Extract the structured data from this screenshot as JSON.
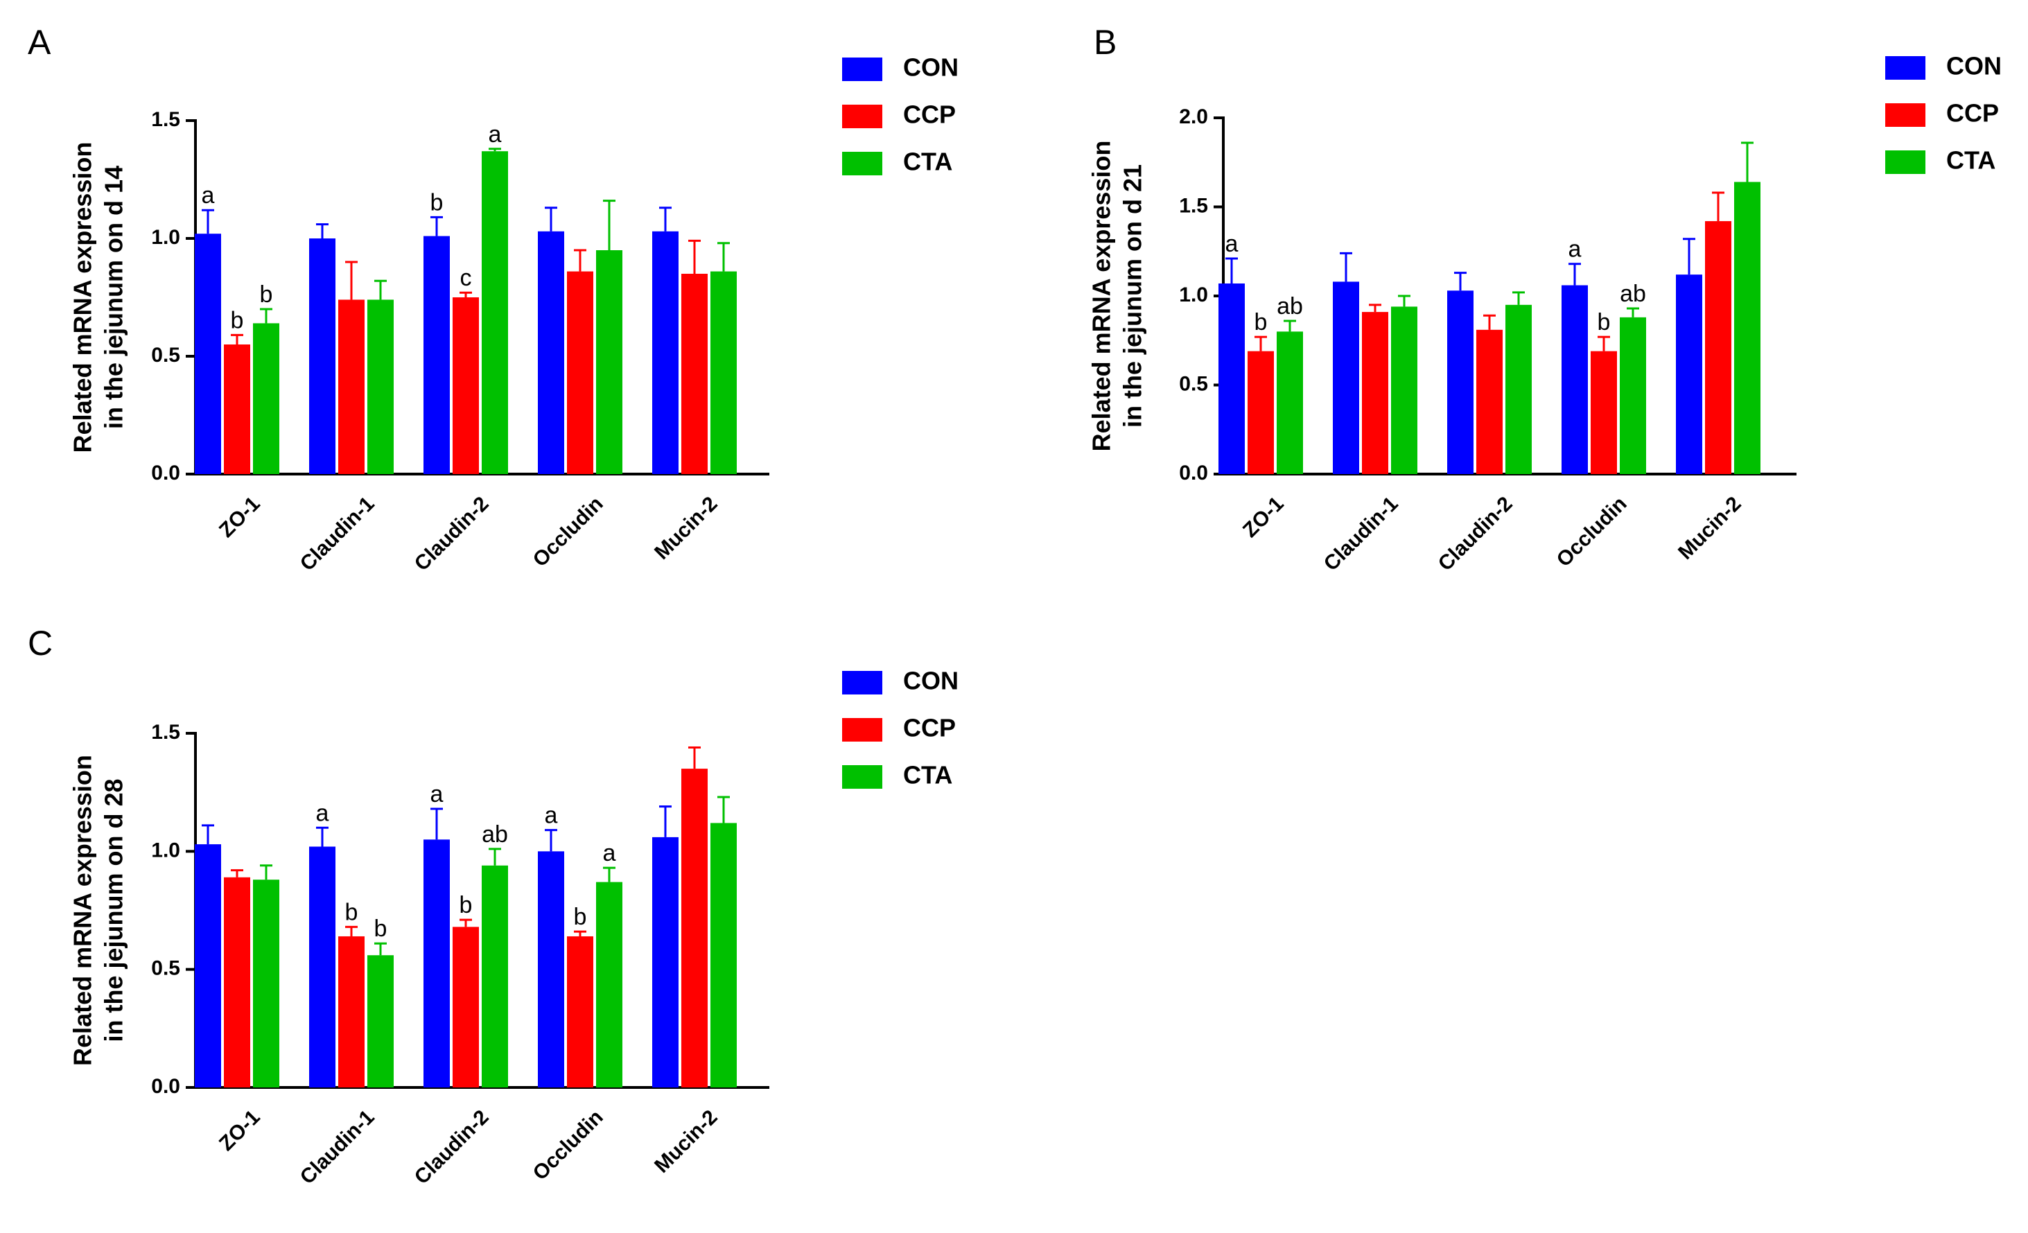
{
  "legend": [
    {
      "name": "CON",
      "color": "#0000FF"
    },
    {
      "name": "CCP",
      "color": "#FF0000"
    },
    {
      "name": "CTA",
      "color": "#00C000"
    }
  ],
  "chart_data": [
    {
      "panel": "A",
      "type": "bar",
      "ylabel_line1": "Related mRNA expression",
      "ylabel_line2": "in the jejunum on d 14",
      "ylim": [
        0,
        1.5
      ],
      "yticks": [
        "0.0",
        "0.5",
        "1.0",
        "1.5"
      ],
      "categories": [
        "ZO-1",
        "Claudin-1",
        "Claudin-2",
        "Occludin",
        "Mucin-2"
      ],
      "series": [
        {
          "name": "CON",
          "values": [
            1.02,
            1.0,
            1.01,
            1.03,
            1.03
          ],
          "errors": [
            0.1,
            0.06,
            0.08,
            0.1,
            0.1
          ],
          "labels": [
            "a",
            "",
            "b",
            "",
            ""
          ]
        },
        {
          "name": "CCP",
          "values": [
            0.55,
            0.74,
            0.75,
            0.86,
            0.85
          ],
          "errors": [
            0.04,
            0.16,
            0.02,
            0.09,
            0.14
          ],
          "labels": [
            "b",
            "",
            "c",
            "",
            ""
          ]
        },
        {
          "name": "CTA",
          "values": [
            0.64,
            0.74,
            1.37,
            0.95,
            0.86
          ],
          "errors": [
            0.06,
            0.08,
            0.01,
            0.21,
            0.12
          ],
          "labels": [
            "b",
            "",
            "a",
            "",
            ""
          ]
        }
      ]
    },
    {
      "panel": "B",
      "type": "bar",
      "ylabel_line1": "Related mRNA expression",
      "ylabel_line2": "in the jejunum on d 21",
      "ylim": [
        0,
        2.0
      ],
      "yticks": [
        "0.0",
        "0.5",
        "1.0",
        "1.5",
        "2.0"
      ],
      "categories": [
        "ZO-1",
        "Claudin-1",
        "Claudin-2",
        "Occludin",
        "Mucin-2"
      ],
      "series": [
        {
          "name": "CON",
          "values": [
            1.07,
            1.08,
            1.03,
            1.06,
            1.12
          ],
          "errors": [
            0.14,
            0.16,
            0.1,
            0.12,
            0.2
          ],
          "labels": [
            "a",
            "",
            "",
            "a",
            ""
          ]
        },
        {
          "name": "CCP",
          "values": [
            0.69,
            0.91,
            0.81,
            0.69,
            1.42
          ],
          "errors": [
            0.08,
            0.04,
            0.08,
            0.08,
            0.16
          ],
          "labels": [
            "b",
            "",
            "",
            "b",
            ""
          ]
        },
        {
          "name": "CTA",
          "values": [
            0.8,
            0.94,
            0.95,
            0.88,
            1.64
          ],
          "errors": [
            0.06,
            0.06,
            0.07,
            0.05,
            0.22
          ],
          "labels": [
            "ab",
            "",
            "",
            "ab",
            ""
          ]
        }
      ]
    },
    {
      "panel": "C",
      "type": "bar",
      "ylabel_line1": "Related mRNA expression",
      "ylabel_line2": "in the jejunum on d 28",
      "ylim": [
        0,
        1.5
      ],
      "yticks": [
        "0.0",
        "0.5",
        "1.0",
        "1.5"
      ],
      "categories": [
        "ZO-1",
        "Claudin-1",
        "Claudin-2",
        "Occludin",
        "Mucin-2"
      ],
      "series": [
        {
          "name": "CON",
          "values": [
            1.03,
            1.02,
            1.05,
            1.0,
            1.06
          ],
          "errors": [
            0.08,
            0.08,
            0.13,
            0.09,
            0.13
          ],
          "labels": [
            "",
            "a",
            "a",
            "a",
            ""
          ]
        },
        {
          "name": "CCP",
          "values": [
            0.89,
            0.64,
            0.68,
            0.64,
            1.35
          ],
          "errors": [
            0.03,
            0.04,
            0.03,
            0.02,
            0.09
          ],
          "labels": [
            "",
            "b",
            "b",
            "b",
            ""
          ]
        },
        {
          "name": "CTA",
          "values": [
            0.88,
            0.56,
            0.94,
            0.87,
            1.12
          ],
          "errors": [
            0.06,
            0.05,
            0.07,
            0.06,
            0.11
          ],
          "labels": [
            "",
            "b",
            "ab",
            "a",
            ""
          ]
        }
      ]
    }
  ]
}
